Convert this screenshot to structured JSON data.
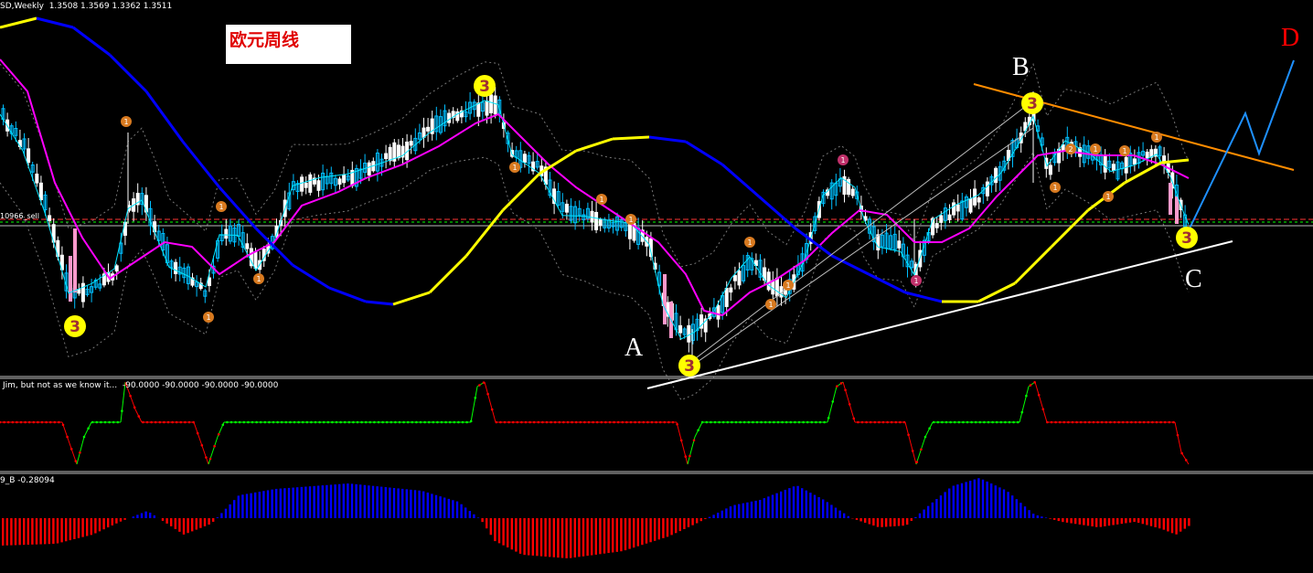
{
  "header": {
    "symbol_line": "SD,Weekly  1.3508 1.3569 1.3362 1.3511",
    "price_label": "10966_sell",
    "ind1_label": "Jim, but not as we know it...  -90.0000 -90.0000 -90.0000 -90.0000",
    "ind2_label": "9_B -0.28094"
  },
  "annotation": {
    "title": "欧元周线"
  },
  "wave_labels": {
    "A": "A",
    "B": "B",
    "C": "C",
    "D": "D"
  },
  "colors": {
    "bull_candle": "#00bfff",
    "bear_candle": "#ffffff",
    "ma_fast": "#00e5ff",
    "ma_mid": "#ff00ff",
    "ma_slow_up": "#ffff00",
    "ma_slow_down": "#0000ff",
    "trend_upper": "#ff8c00",
    "trend_lower": "#ffffff",
    "projection": "#1e90ff",
    "hline_red": "#ff3333",
    "hline_green": "#00ff00",
    "ind1_low": "#ff0000",
    "ind1_high": "#00ff00",
    "hist_pos": "#0000ff",
    "hist_neg": "#ff0000",
    "label_letter_D": "#ff0000",
    "marker_fill": "#ffff00"
  },
  "chart_data": {
    "type": "candlestick",
    "timeframe": "Weekly",
    "last_bar": {
      "open": 1.3508,
      "high": 1.3569,
      "low": 1.3362,
      "close": 1.3511
    },
    "wave_count_markers": [
      {
        "label": "3",
        "wave": "A-low"
      },
      {
        "label": "3",
        "wave": "top"
      },
      {
        "label": "3",
        "wave": "A"
      },
      {
        "label": "3",
        "wave": "B"
      },
      {
        "label": "3",
        "wave": "C"
      }
    ],
    "small_markers": [
      "1",
      "1",
      "1",
      "1",
      "1",
      "1",
      "1",
      "1",
      "1",
      "1",
      "1",
      "1",
      "1",
      "2",
      "1",
      "1",
      "1",
      "1",
      "1"
    ],
    "oscillator_1": {
      "name": "Jim, but not as we know it...",
      "values": [
        -90,
        -90,
        -90,
        -90
      ]
    },
    "oscillator_2": {
      "name": "9_B",
      "value": -0.28094
    }
  }
}
